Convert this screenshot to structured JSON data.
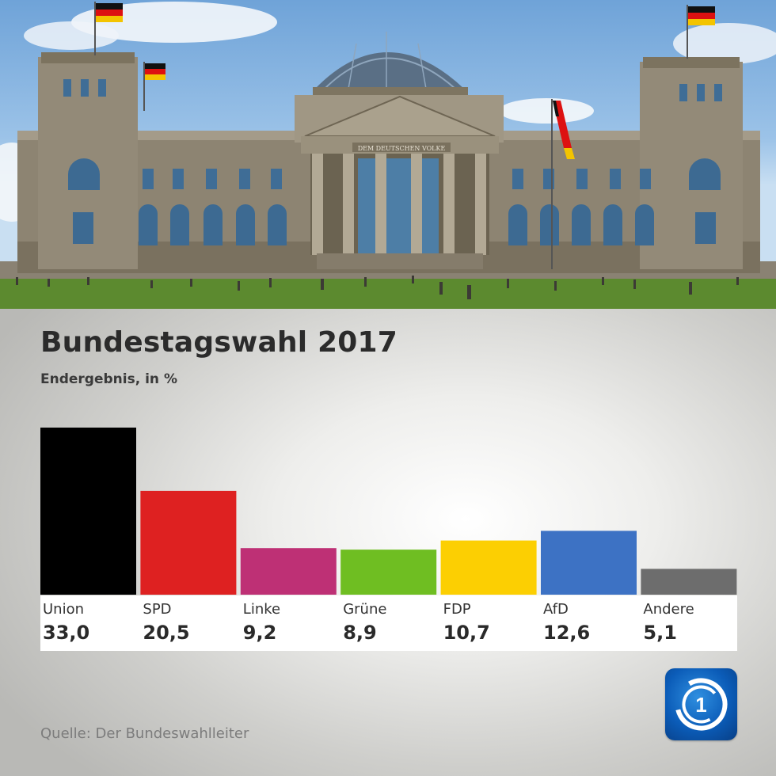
{
  "title": "Bundestagswahl 2017",
  "subtitle": "Endergebnis, in %",
  "source": "Quelle: Der Bundeswahlleiter",
  "photo": {
    "inscription": "DEM DEUTSCHEN VOLKE"
  },
  "logo": {
    "mark": "1"
  },
  "chart_data": {
    "type": "bar",
    "title": "Bundestagswahl 2017",
    "subtitle": "Endergebnis, in %",
    "xlabel": "",
    "ylabel": "",
    "ylim": [
      0,
      33.0
    ],
    "grid": false,
    "legend": "none",
    "categories": [
      "Union",
      "SPD",
      "Linke",
      "Grüne",
      "FDP",
      "AfD",
      "Andere"
    ],
    "values": [
      33.0,
      20.5,
      9.2,
      8.9,
      10.7,
      12.6,
      5.1
    ],
    "value_labels": [
      "33,0",
      "20,5",
      "9,2",
      "8,9",
      "10,7",
      "12,6",
      "5,1"
    ],
    "colors": [
      "#000000",
      "#de2121",
      "#be3075",
      "#6fbe22",
      "#fccf02",
      "#3d72c4",
      "#6d6d6d"
    ]
  },
  "icons": {
    "logo": "tagesschau-logo-icon"
  }
}
